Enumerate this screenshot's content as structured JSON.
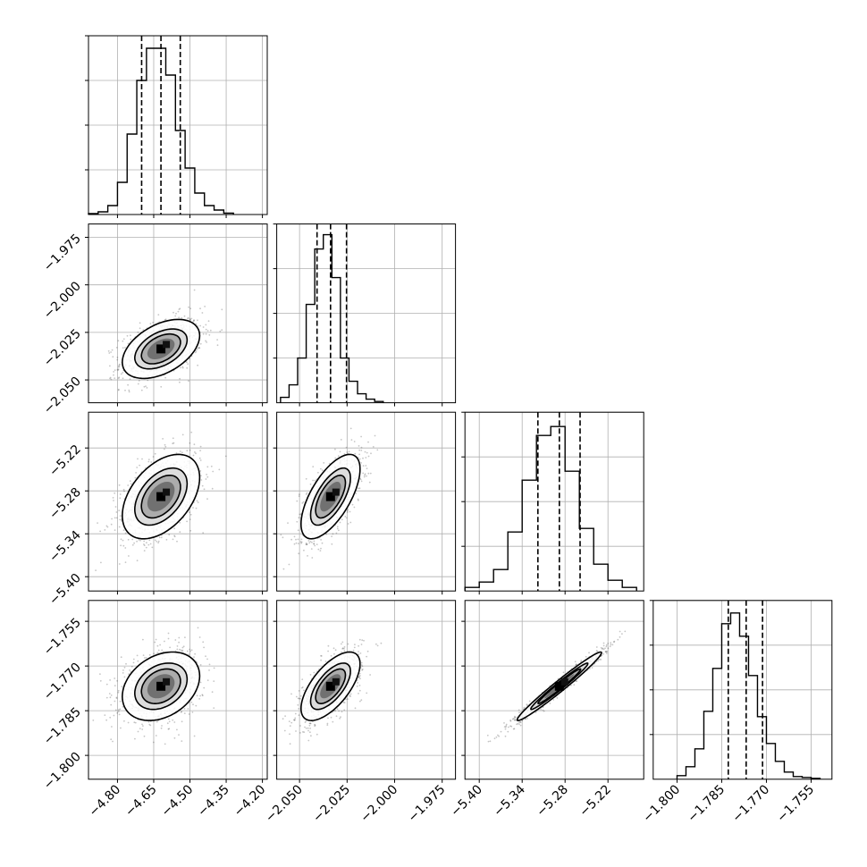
{
  "chart_data": {
    "type": "corner",
    "title": "",
    "params": [
      {
        "name": "",
        "range": [
          -4.92,
          -4.18
        ],
        "ticks": [
          -4.8,
          -4.65,
          -4.5,
          -4.35,
          -4.2
        ],
        "tick_labels": [
          "−4.80",
          "−4.65",
          "−4.50",
          "−4.35",
          "−4.20"
        ],
        "quantiles": [
          -4.7,
          -4.62,
          -4.54
        ],
        "hist_bin_edges": [
          -4.92,
          -4.88,
          -4.84,
          -4.8,
          -4.76,
          -4.72,
          -4.68,
          -4.64,
          -4.6,
          -4.56,
          -4.52,
          -4.48,
          -4.44,
          -4.4,
          -4.36,
          -4.32
        ],
        "hist_heights": [
          0.005,
          0.015,
          0.05,
          0.18,
          0.45,
          0.75,
          0.93,
          0.93,
          0.78,
          0.47,
          0.26,
          0.12,
          0.05,
          0.025,
          0.008
        ]
      },
      {
        "name": "",
        "range": [
          -2.062,
          -1.968
        ],
        "ticks": [
          -2.05,
          -2.025,
          -2.0,
          -1.975
        ],
        "tick_labels": [
          "−2.050",
          "−2.025",
          "−2.000",
          "−1.975"
        ],
        "quantiles": [
          -2.0408,
          -2.0337,
          -2.0253
        ],
        "hist_bin_edges": [
          -2.06,
          -2.0555,
          -2.051,
          -2.0465,
          -2.042,
          -2.0375,
          -2.033,
          -2.0285,
          -2.024,
          -2.0195,
          -2.015,
          -2.0105,
          -2.006
        ],
        "hist_heights": [
          0.03,
          0.1,
          0.25,
          0.55,
          0.86,
          0.94,
          0.7,
          0.25,
          0.12,
          0.05,
          0.02,
          0.007
        ]
      },
      {
        "name": "",
        "range": [
          -5.42,
          -5.17
        ],
        "ticks": [
          -5.4,
          -5.34,
          -5.28,
          -5.22
        ],
        "tick_labels": [
          "−5.40",
          "−5.34",
          "−5.28",
          "−5.22"
        ],
        "quantiles": [
          -5.318,
          -5.288,
          -5.259
        ],
        "hist_bin_edges": [
          -5.42,
          -5.4,
          -5.38,
          -5.36,
          -5.34,
          -5.32,
          -5.3,
          -5.28,
          -5.26,
          -5.24,
          -5.22,
          -5.2,
          -5.18
        ],
        "hist_heights": [
          0.02,
          0.05,
          0.12,
          0.33,
          0.62,
          0.87,
          0.92,
          0.67,
          0.35,
          0.15,
          0.06,
          0.02
        ]
      },
      {
        "name": "",
        "range": [
          -1.808,
          -1.748
        ],
        "ticks": [
          -1.8,
          -1.785,
          -1.77,
          -1.755
        ],
        "tick_labels": [
          "−1.800",
          "−1.785",
          "−1.770",
          "−1.755"
        ],
        "quantiles": [
          -1.7828,
          -1.7768,
          -1.7713
        ],
        "hist_bin_edges": [
          -1.8,
          -1.797,
          -1.794,
          -1.791,
          -1.788,
          -1.785,
          -1.782,
          -1.779,
          -1.776,
          -1.773,
          -1.77,
          -1.767,
          -1.764,
          -1.761,
          -1.758,
          -1.755,
          -1.752
        ],
        "hist_heights": [
          0.02,
          0.07,
          0.17,
          0.38,
          0.62,
          0.87,
          0.93,
          0.8,
          0.58,
          0.35,
          0.2,
          0.1,
          0.04,
          0.015,
          0.01,
          0.005
        ]
      }
    ],
    "correlations": {
      "1-0": 0.45,
      "2-0": 0.45,
      "2-1": 0.65,
      "3-0": 0.3,
      "3-1": 0.65,
      "3-2": 0.98
    },
    "grid": true
  }
}
